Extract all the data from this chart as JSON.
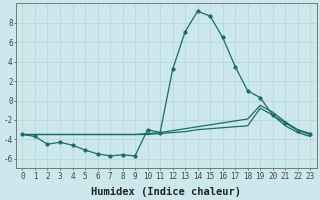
{
  "xlabel": "Humidex (Indice chaleur)",
  "bg_color": "#cce8ec",
  "grid_color": "#b8d8dc",
  "line_color": "#1a6b6b",
  "xlim": [
    -0.5,
    23.5
  ],
  "ylim": [
    -7,
    10
  ],
  "yticks": [
    -6,
    -4,
    -2,
    0,
    2,
    4,
    6,
    8
  ],
  "xticks": [
    0,
    1,
    2,
    3,
    4,
    5,
    6,
    7,
    8,
    9,
    10,
    11,
    12,
    13,
    14,
    15,
    16,
    17,
    18,
    19,
    20,
    21,
    22,
    23
  ],
  "line1_x": [
    0,
    1,
    2,
    3,
    4,
    5,
    6,
    7,
    8,
    9,
    10,
    11,
    12,
    13,
    14,
    15,
    16,
    17,
    18,
    19,
    20,
    21,
    22,
    23
  ],
  "line1_y": [
    -3.5,
    -3.7,
    -4.5,
    -4.3,
    -4.6,
    -5.1,
    -5.5,
    -5.7,
    -5.6,
    -5.7,
    -3.0,
    -3.3,
    3.2,
    7.1,
    9.2,
    8.7,
    6.5,
    3.5,
    1.0,
    0.3,
    -1.5,
    -2.3,
    -3.1,
    -3.5
  ],
  "line2_x": [
    0,
    1,
    2,
    3,
    4,
    5,
    6,
    7,
    8,
    9,
    10,
    11,
    12,
    13,
    14,
    15,
    16,
    17,
    18,
    19,
    20,
    21,
    22,
    23
  ],
  "line2_y": [
    -3.5,
    -3.5,
    -3.5,
    -3.5,
    -3.5,
    -3.5,
    -3.5,
    -3.5,
    -3.5,
    -3.5,
    -3.4,
    -3.3,
    -3.1,
    -2.9,
    -2.7,
    -2.5,
    -2.3,
    -2.1,
    -1.9,
    -0.5,
    -1.2,
    -2.2,
    -3.0,
    -3.4
  ],
  "line3_x": [
    0,
    1,
    2,
    3,
    4,
    5,
    6,
    7,
    8,
    9,
    10,
    11,
    12,
    13,
    14,
    15,
    16,
    17,
    18,
    19,
    20,
    21,
    22,
    23
  ],
  "line3_y": [
    -3.5,
    -3.5,
    -3.5,
    -3.5,
    -3.5,
    -3.5,
    -3.5,
    -3.5,
    -3.5,
    -3.5,
    -3.5,
    -3.4,
    -3.3,
    -3.2,
    -3.0,
    -2.9,
    -2.8,
    -2.7,
    -2.6,
    -0.8,
    -1.5,
    -2.6,
    -3.3,
    -3.7
  ],
  "tick_fontsize": 5.5,
  "xlabel_fontsize": 7.5,
  "figsize": [
    3.2,
    2.0
  ],
  "dpi": 100
}
